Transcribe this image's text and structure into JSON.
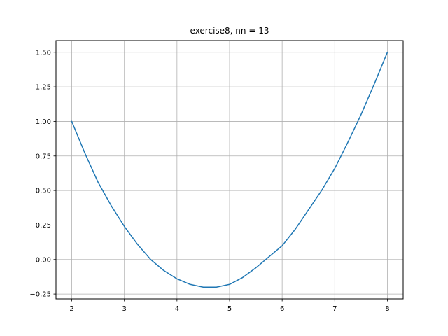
{
  "chart_data": {
    "type": "line",
    "title": "exercise8, nn = 13",
    "xlabel": "",
    "ylabel": "",
    "xlim": [
      1.7,
      8.3
    ],
    "ylim": [
      -0.285,
      1.585
    ],
    "xticks": [
      2,
      3,
      4,
      5,
      6,
      7,
      8
    ],
    "xtick_labels": [
      "2",
      "3",
      "4",
      "5",
      "6",
      "7",
      "8"
    ],
    "yticks": [
      -0.25,
      0.0,
      0.25,
      0.5,
      0.75,
      1.0,
      1.25,
      1.5
    ],
    "ytick_labels": [
      "−0.25",
      "0.00",
      "0.25",
      "0.50",
      "0.75",
      "1.00",
      "1.25",
      "1.50"
    ],
    "grid": true,
    "line_color": "#1f77b4",
    "series": [
      {
        "x": [
          2.0,
          2.25,
          2.5,
          2.75,
          3.0,
          3.25,
          3.5,
          3.75,
          4.0,
          4.25,
          4.5,
          4.62,
          4.75,
          5.0,
          5.25,
          5.5,
          5.75,
          6.0,
          6.25,
          6.5,
          6.75,
          7.0,
          7.25,
          7.5,
          7.75,
          8.0
        ],
        "values": [
          1.0,
          0.77,
          0.56,
          0.39,
          0.24,
          0.11,
          0.0,
          -0.08,
          -0.14,
          -0.18,
          -0.2,
          -0.2,
          -0.2,
          -0.18,
          -0.13,
          -0.06,
          0.02,
          0.1,
          0.22,
          0.36,
          0.5,
          0.66,
          0.85,
          1.05,
          1.27,
          1.5
        ]
      }
    ]
  }
}
